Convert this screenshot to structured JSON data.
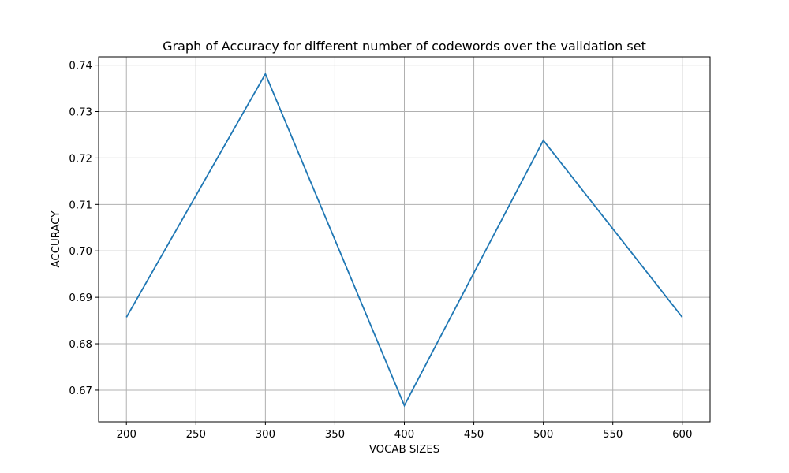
{
  "chart_data": {
    "type": "line",
    "title": "Graph of Accuracy for different number of codewords over the validation set",
    "xlabel": "VOCAB SIZES",
    "ylabel": "ACCURACY",
    "x": [
      200,
      300,
      400,
      500,
      600
    ],
    "series": [
      {
        "values": [
          0.6857,
          0.7381,
          0.6667,
          0.7238,
          0.6857
        ],
        "color": "#1f77b4"
      }
    ],
    "xlim": [
      180,
      620
    ],
    "ylim": [
      0.6632,
      0.7418
    ],
    "xticks": [
      200,
      250,
      300,
      350,
      400,
      450,
      500,
      550,
      600
    ],
    "yticks": [
      0.67,
      0.68,
      0.69,
      0.7,
      0.71,
      0.72,
      0.73,
      0.74
    ],
    "ytick_labels": [
      "0.67",
      "0.68",
      "0.69",
      "0.70",
      "0.71",
      "0.72",
      "0.73",
      "0.74"
    ],
    "grid": true,
    "grid_color": "#b0b0b0",
    "legend": "none"
  }
}
